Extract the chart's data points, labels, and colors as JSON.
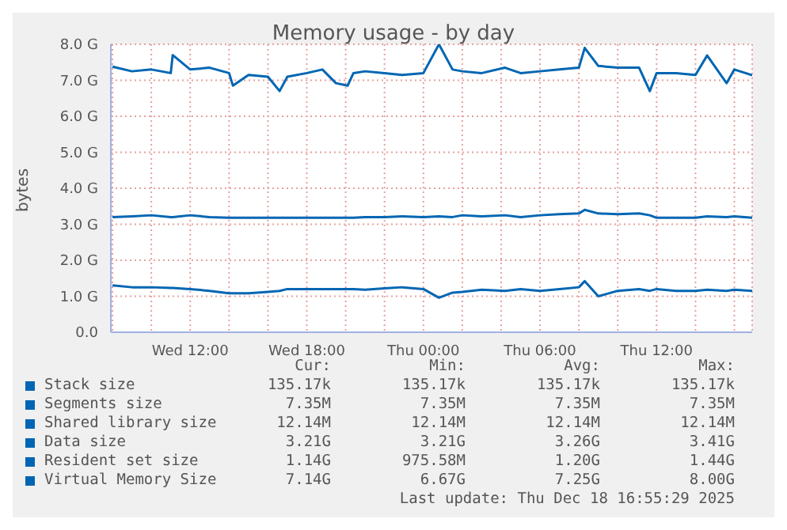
{
  "chart_data": {
    "type": "line",
    "title": "Memory usage - by day",
    "ylabel": "bytes",
    "x": [
      "2025-12-17T08:00",
      "2025-12-17T09:00",
      "2025-12-17T10:00",
      "2025-12-17T11:00",
      "2025-12-17T11:06",
      "2025-12-17T12:00",
      "2025-12-17T13:00",
      "2025-12-17T14:00",
      "2025-12-17T14:12",
      "2025-12-17T15:00",
      "2025-12-17T16:00",
      "2025-12-17T16:36",
      "2025-12-17T17:00",
      "2025-12-17T18:00",
      "2025-12-17T18:48",
      "2025-12-17T19:30",
      "2025-12-17T20:06",
      "2025-12-17T20:24",
      "2025-12-17T21:00",
      "2025-12-17T22:00",
      "2025-12-17T22:54",
      "2025-12-18T00:00",
      "2025-12-18T00:48",
      "2025-12-18T01:30",
      "2025-12-18T02:00",
      "2025-12-18T03:00",
      "2025-12-18T04:12",
      "2025-12-18T05:00",
      "2025-12-18T06:00",
      "2025-12-18T07:00",
      "2025-12-18T08:00",
      "2025-12-18T08:18",
      "2025-12-18T09:00",
      "2025-12-18T10:00",
      "2025-12-18T11:06",
      "2025-12-18T11:39",
      "2025-12-18T12:00",
      "2025-12-18T13:00",
      "2025-12-18T14:00",
      "2025-12-18T14:36",
      "2025-12-18T15:36",
      "2025-12-18T16:00",
      "2025-12-18T16:55"
    ],
    "xlim": [
      "2025-12-17T07:55",
      "2025-12-18T16:55"
    ],
    "xticks": [
      {
        "value": "2025-12-17T08:00",
        "label": null
      },
      {
        "value": "2025-12-17T10:00",
        "label": null
      },
      {
        "value": "2025-12-17T12:00",
        "label": "Wed 12:00"
      },
      {
        "value": "2025-12-17T14:00",
        "label": null
      },
      {
        "value": "2025-12-17T16:00",
        "label": null
      },
      {
        "value": "2025-12-17T18:00",
        "label": "Wed 18:00"
      },
      {
        "value": "2025-12-17T20:00",
        "label": null
      },
      {
        "value": "2025-12-17T22:00",
        "label": null
      },
      {
        "value": "2025-12-18T00:00",
        "label": "Thu 00:00"
      },
      {
        "value": "2025-12-18T02:00",
        "label": null
      },
      {
        "value": "2025-12-18T04:00",
        "label": null
      },
      {
        "value": "2025-12-18T06:00",
        "label": "Thu 06:00"
      },
      {
        "value": "2025-12-18T08:00",
        "label": null
      },
      {
        "value": "2025-12-18T10:00",
        "label": null
      },
      {
        "value": "2025-12-18T12:00",
        "label": "Thu 12:00"
      },
      {
        "value": "2025-12-18T14:00",
        "label": null
      },
      {
        "value": "2025-12-18T16:00",
        "label": null
      }
    ],
    "ylim": [
      0,
      8
    ],
    "yticks": [
      {
        "value": 0,
        "label": "0.0"
      },
      {
        "value": 1,
        "label": "1.0 G"
      },
      {
        "value": 2,
        "label": "2.0 G"
      },
      {
        "value": 3,
        "label": "3.0 G"
      },
      {
        "value": 4,
        "label": "4.0 G"
      },
      {
        "value": 5,
        "label": "5.0 G"
      },
      {
        "value": 6,
        "label": "6.0 G"
      },
      {
        "value": 7,
        "label": "7.0 G"
      },
      {
        "value": 8,
        "label": "8.0 G"
      }
    ],
    "grid": true,
    "legend": "bottom",
    "marker": "none",
    "line_style": "solid",
    "series": [
      {
        "name": "Stack size",
        "color": "#0066b3",
        "values": [
          null,
          null,
          null,
          null,
          null,
          null,
          null,
          null,
          null,
          null,
          null,
          null,
          null,
          null,
          null,
          null,
          null,
          null,
          null,
          null,
          null,
          null,
          null,
          null,
          null,
          null,
          null,
          null,
          null,
          null,
          null,
          null,
          null,
          null,
          null,
          null,
          null,
          null,
          null,
          null,
          null,
          null,
          null
        ]
      },
      {
        "name": "Segments size",
        "color": "#0066b3",
        "values": [
          null,
          null,
          null,
          null,
          null,
          null,
          null,
          null,
          null,
          null,
          null,
          null,
          null,
          null,
          null,
          null,
          null,
          null,
          null,
          null,
          null,
          null,
          null,
          null,
          null,
          null,
          null,
          null,
          null,
          null,
          null,
          null,
          null,
          null,
          null,
          null,
          null,
          null,
          null,
          null,
          null,
          null,
          null
        ]
      },
      {
        "name": "Shared library size",
        "color": "#0066b3",
        "values": [
          null,
          null,
          null,
          null,
          null,
          null,
          null,
          null,
          null,
          null,
          null,
          null,
          null,
          null,
          null,
          null,
          null,
          null,
          null,
          null,
          null,
          null,
          null,
          null,
          null,
          null,
          null,
          null,
          null,
          null,
          null,
          null,
          null,
          null,
          null,
          null,
          null,
          null,
          null,
          null,
          null,
          null,
          null
        ]
      },
      {
        "name": "Data size",
        "color": "#0066b3",
        "values": [
          3.2,
          3.22,
          3.25,
          3.2,
          3.2,
          3.25,
          3.2,
          3.18,
          3.18,
          3.18,
          3.18,
          3.18,
          3.18,
          3.18,
          3.18,
          3.18,
          3.18,
          3.18,
          3.2,
          3.2,
          3.22,
          3.2,
          3.22,
          3.2,
          3.25,
          3.22,
          3.25,
          3.2,
          3.25,
          3.28,
          3.3,
          3.4,
          3.3,
          3.28,
          3.3,
          3.25,
          3.18,
          3.18,
          3.18,
          3.22,
          3.2,
          3.22,
          3.18
        ]
      },
      {
        "name": "Resident set size",
        "color": "#0066b3",
        "values": [
          1.3,
          1.25,
          1.25,
          1.23,
          1.23,
          1.2,
          1.15,
          1.08,
          1.08,
          1.08,
          1.12,
          1.15,
          1.2,
          1.2,
          1.2,
          1.2,
          1.2,
          1.2,
          1.18,
          1.22,
          1.25,
          1.2,
          0.96,
          1.1,
          1.12,
          1.18,
          1.15,
          1.2,
          1.15,
          1.2,
          1.25,
          1.42,
          1.0,
          1.15,
          1.2,
          1.15,
          1.2,
          1.15,
          1.15,
          1.18,
          1.15,
          1.18,
          1.15
        ]
      },
      {
        "name": "Virtual Memory Size",
        "color": "#0066b3",
        "values": [
          7.38,
          7.25,
          7.3,
          7.2,
          7.7,
          7.3,
          7.35,
          7.2,
          6.85,
          7.15,
          7.1,
          6.7,
          7.1,
          7.2,
          7.3,
          6.92,
          6.85,
          7.2,
          7.25,
          7.2,
          7.15,
          7.2,
          8.0,
          7.3,
          7.25,
          7.2,
          7.35,
          7.2,
          7.25,
          7.3,
          7.35,
          7.9,
          7.4,
          7.35,
          7.35,
          6.7,
          7.2,
          7.2,
          7.15,
          7.69,
          6.92,
          7.3,
          7.14
        ]
      }
    ],
    "annotations": [
      "Cur:",
      "Min:",
      "Avg:",
      "Max:",
      "135.17k",
      "135.17k",
      "135.17k",
      "135.17k",
      "7.35M",
      "7.35M",
      "7.35M",
      "7.35M",
      "12.14M",
      "12.14M",
      "12.14M",
      "12.14M",
      "3.21G",
      "3.21G",
      "3.26G",
      "3.41G",
      "1.14G",
      "975.58M",
      "1.20G",
      "1.44G",
      "7.14G",
      "6.67G",
      "7.25G",
      "8.00G",
      "Last update: Thu Dec 18 16:55:29 2025"
    ]
  }
}
